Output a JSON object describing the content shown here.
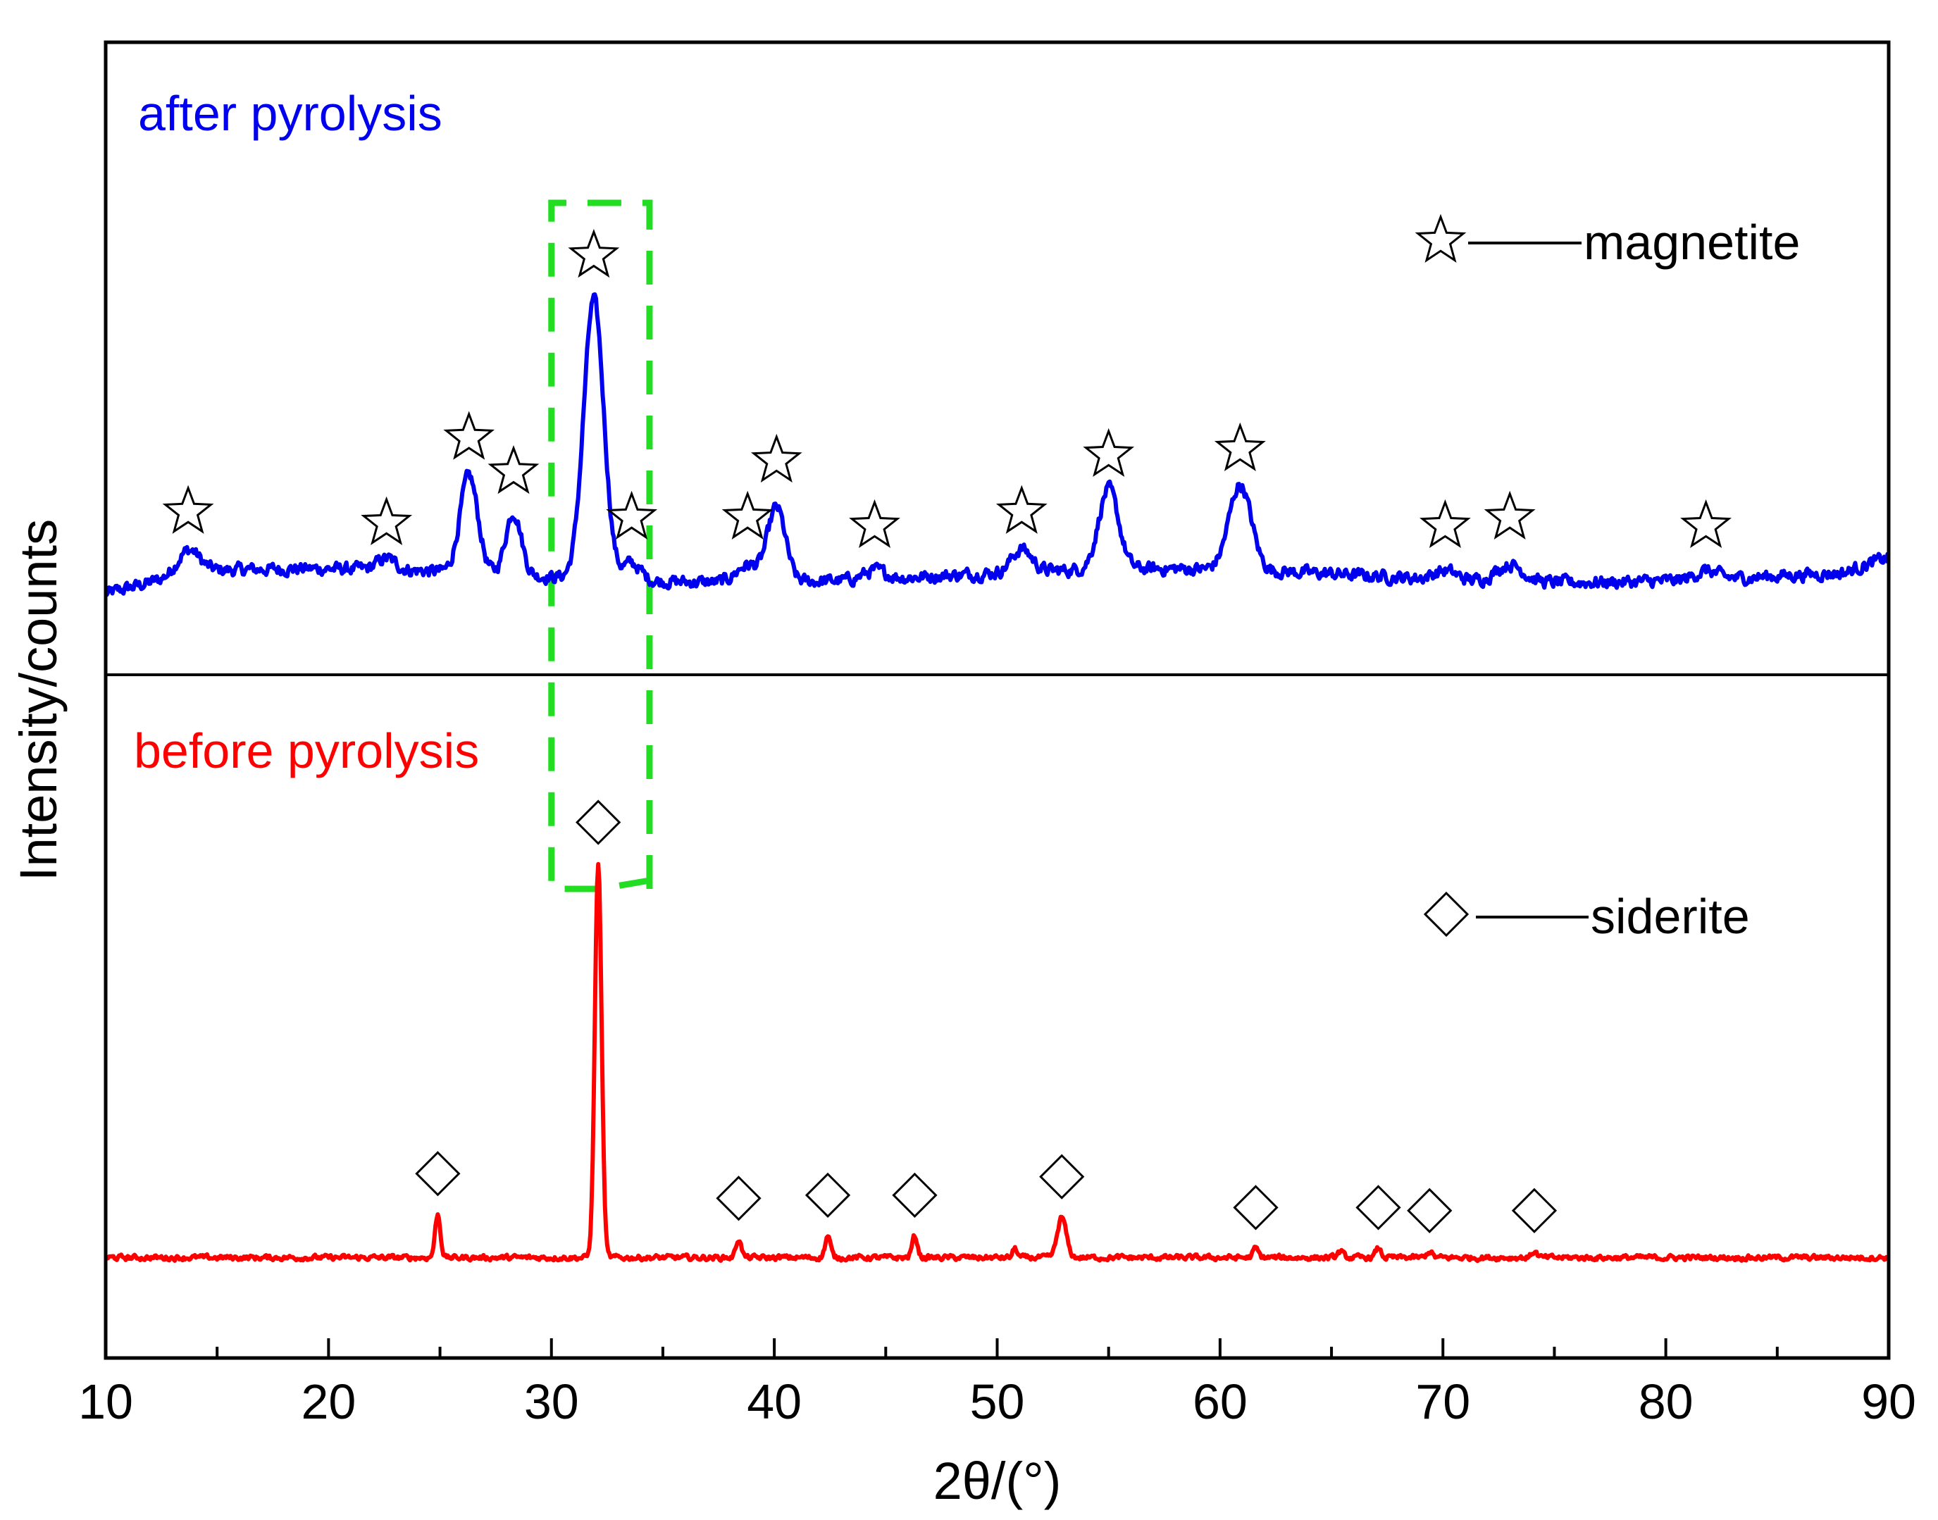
{
  "chart_data": {
    "type": "line",
    "title": "",
    "xlabel": "2θ/(°)",
    "ylabel": "Intensity/counts",
    "xlim": [
      10,
      90
    ],
    "x_ticks": [
      10,
      20,
      30,
      40,
      50,
      60,
      70,
      80,
      90
    ],
    "x_tick_labels": [
      "10",
      "20",
      "30",
      "40",
      "50",
      "60",
      "70",
      "80",
      "90"
    ],
    "y_ticks_visible": false,
    "panels": [
      {
        "id": "top",
        "label": "after pyrolysis",
        "color": "#0000ee",
        "ylim": [
          0,
          100
        ],
        "baseline": 10,
        "noise": 0.9,
        "peaks": [
          {
            "x": 13.7,
            "h": 4,
            "w": 0.5
          },
          {
            "x": 22.6,
            "h": 2,
            "w": 0.4
          },
          {
            "x": 26.3,
            "h": 17,
            "w": 0.4
          },
          {
            "x": 28.3,
            "h": 11,
            "w": 0.35
          },
          {
            "x": 31.9,
            "h": 49,
            "w": 0.45
          },
          {
            "x": 33.6,
            "h": 3,
            "w": 0.4
          },
          {
            "x": 38.8,
            "h": 3,
            "w": 0.5
          },
          {
            "x": 40.1,
            "h": 13,
            "w": 0.4
          },
          {
            "x": 44.5,
            "h": 1.5,
            "w": 0.5
          },
          {
            "x": 51.1,
            "h": 4,
            "w": 0.45
          },
          {
            "x": 55.0,
            "h": 14,
            "w": 0.45
          },
          {
            "x": 60.9,
            "h": 15,
            "w": 0.5
          },
          {
            "x": 70.1,
            "h": 1.5,
            "w": 0.5
          },
          {
            "x": 73.0,
            "h": 3,
            "w": 0.6
          },
          {
            "x": 81.8,
            "h": 1.5,
            "w": 0.5
          }
        ],
        "markers": {
          "symbol": "star",
          "name": "magnetite",
          "positions": [
            13.7,
            22.6,
            26.3,
            28.3,
            31.9,
            33.6,
            38.8,
            40.1,
            44.5,
            51.1,
            55.0,
            60.9,
            70.1,
            73.0,
            81.8
          ]
        }
      },
      {
        "id": "bottom",
        "label": "before pyrolysis",
        "color": "#ff0000",
        "ylim": [
          0,
          100
        ],
        "baseline": 10,
        "noise": 0.35,
        "peaks": [
          {
            "x": 24.9,
            "h": 7,
            "w": 0.12
          },
          {
            "x": 32.1,
            "h": 64,
            "w": 0.15
          },
          {
            "x": 38.4,
            "h": 3,
            "w": 0.12
          },
          {
            "x": 42.4,
            "h": 3.5,
            "w": 0.12
          },
          {
            "x": 46.3,
            "h": 3.5,
            "w": 0.12
          },
          {
            "x": 50.8,
            "h": 1.5,
            "w": 0.1
          },
          {
            "x": 52.9,
            "h": 6.5,
            "w": 0.2
          },
          {
            "x": 61.6,
            "h": 1.5,
            "w": 0.12
          },
          {
            "x": 65.4,
            "h": 1,
            "w": 0.12
          },
          {
            "x": 67.1,
            "h": 1.5,
            "w": 0.12
          },
          {
            "x": 69.4,
            "h": 1,
            "w": 0.12
          },
          {
            "x": 74.1,
            "h": 1,
            "w": 0.12
          }
        ],
        "markers": {
          "symbol": "diamond",
          "name": "siderite",
          "positions": [
            24.9,
            32.1,
            38.4,
            42.4,
            46.3,
            52.9,
            61.6,
            67.1,
            69.4,
            74.1
          ]
        }
      }
    ],
    "highlight_box": {
      "x": [
        30,
        34.4
      ],
      "color": "#22dd22",
      "style": "dashed"
    },
    "legend": [
      {
        "symbol": "star",
        "label": "magnetite",
        "placement": "top-right"
      },
      {
        "symbol": "diamond",
        "label": "siderite",
        "placement": "bottom-right"
      }
    ]
  }
}
